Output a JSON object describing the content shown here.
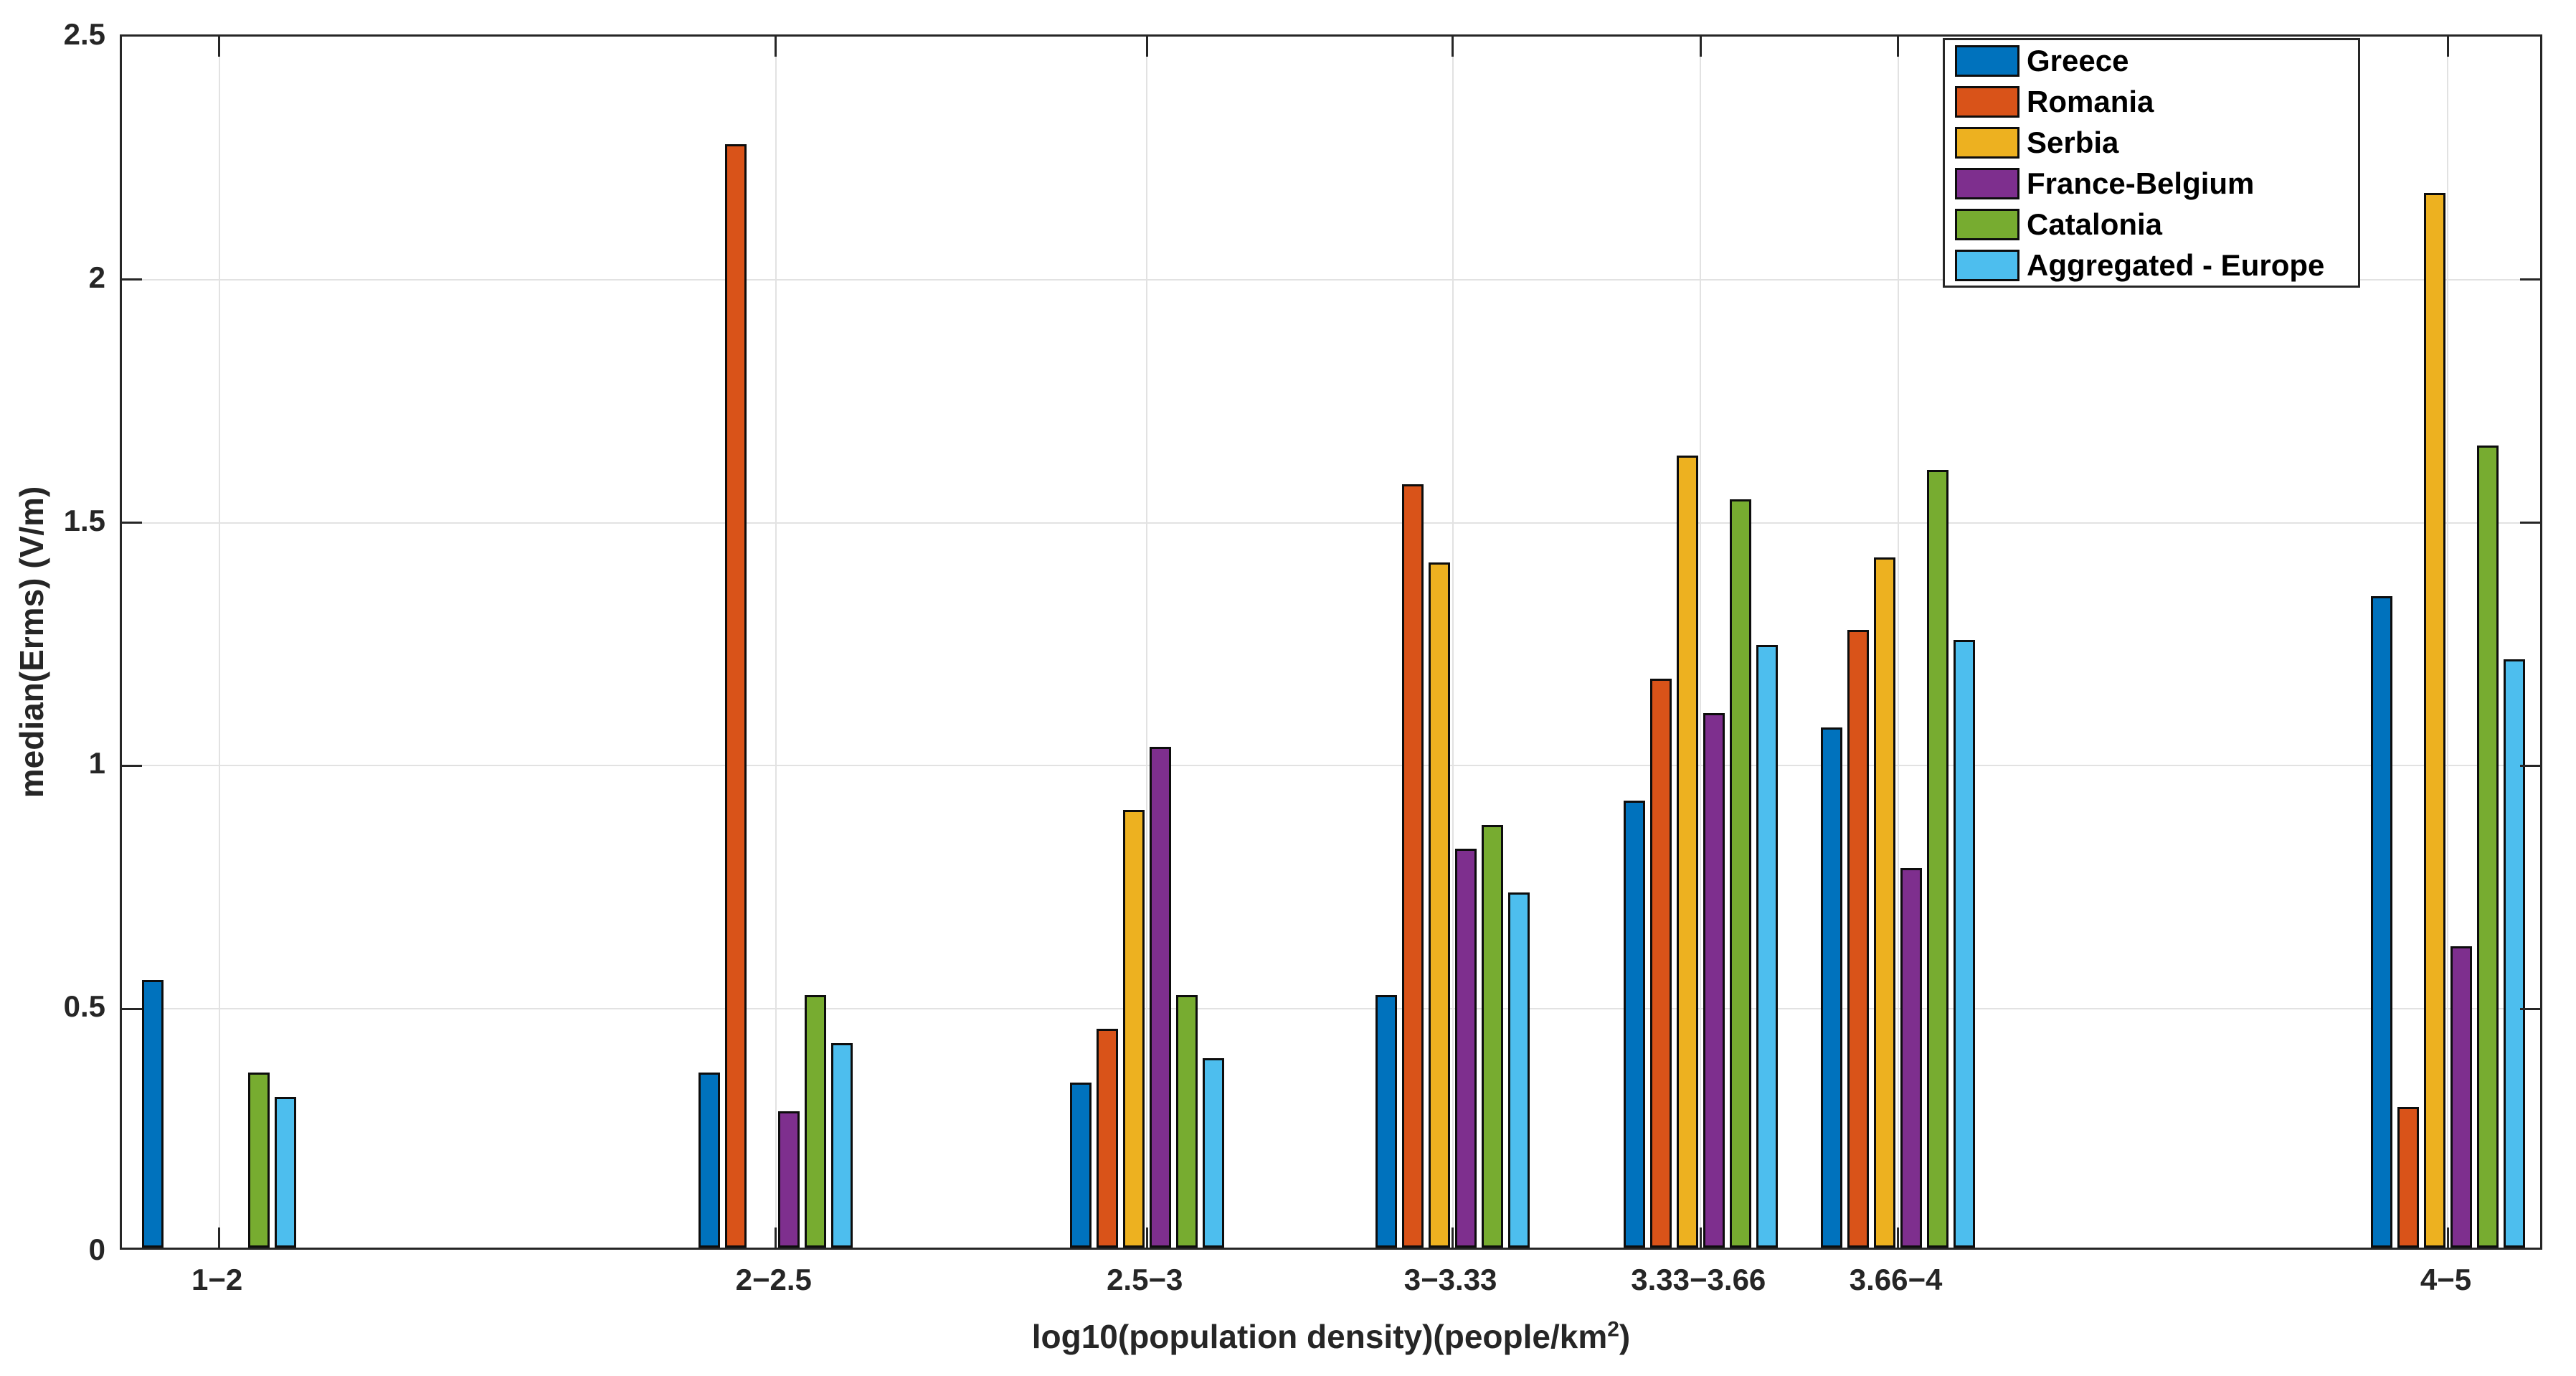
{
  "chart_data": {
    "type": "bar",
    "title": "",
    "xlabel": "log10(population density)(people/km²)",
    "xlabel_pre": "log10(population density)(people/km",
    "xlabel_sup": "2",
    "xlabel_post": ")",
    "ylabel": "median(Erms) (V/m)",
    "categories": [
      "1−2",
      "2−2.5",
      "2.5−3",
      "3−3.33",
      "3.33−3.66",
      "3.66−4",
      "4−5"
    ],
    "x_positions": [
      1.5,
      2.25,
      2.75,
      3.162,
      3.496,
      3.762,
      4.503
    ],
    "xlim": [
      1.369,
      4.633
    ],
    "ylim": [
      0,
      2.5
    ],
    "yticks": [
      0,
      0.5,
      1,
      1.5,
      2,
      2.5
    ],
    "ytick_labels": [
      "0",
      "0.5",
      "1",
      "1.5",
      "2",
      "2.5"
    ],
    "grid": true,
    "legend_position": "top-right",
    "bar_edge_color": "#0d0d0d",
    "series": [
      {
        "name": "Greece",
        "color": "#0072BD",
        "values": [
          0.55,
          0.36,
          0.34,
          0.52,
          0.92,
          1.07,
          1.34
        ]
      },
      {
        "name": "Romania",
        "color": "#D95319",
        "values": [
          null,
          2.27,
          0.45,
          1.57,
          1.17,
          1.27,
          0.29
        ]
      },
      {
        "name": "Serbia",
        "color": "#EDB120",
        "values": [
          null,
          null,
          0.9,
          1.41,
          1.63,
          1.42,
          2.17
        ]
      },
      {
        "name": "France-Belgium",
        "color": "#7E2F8E",
        "values": [
          null,
          0.28,
          1.03,
          0.82,
          1.1,
          0.78,
          0.62
        ]
      },
      {
        "name": "Catalonia",
        "color": "#77AC30",
        "values": [
          0.36,
          0.52,
          0.52,
          0.87,
          1.54,
          1.6,
          1.65
        ]
      },
      {
        "name": "Aggregated - Europe",
        "color": "#4DBEEE",
        "values": [
          0.31,
          0.42,
          0.39,
          0.73,
          1.24,
          1.25,
          1.21
        ]
      }
    ]
  }
}
